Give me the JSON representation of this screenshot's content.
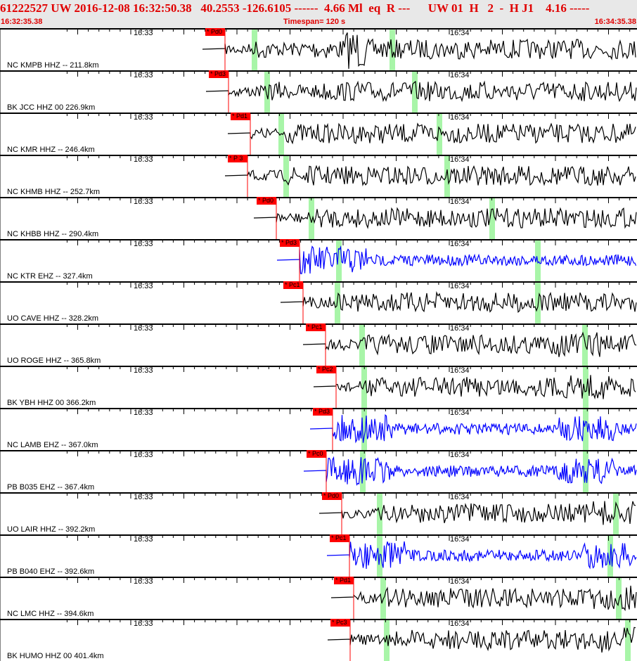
{
  "header": {
    "title": "61222527 UW 2016-12-08 16:32:50.38   40.2553 -126.6105 ------  4.66 Ml  eq  R ---      UW 01  H   2  -  H J1    4.16 -----",
    "start_time": "16:32:35.38",
    "timespan": "Timespan= 120 s",
    "end_time": "16:34:35.38"
  },
  "time_labels": [
    "16:33",
    "16:34"
  ],
  "colors": {
    "header_text": "#e00000",
    "pick": "#ff0000",
    "s_marker": "#a8f5a8",
    "trace_hhz": "#000000",
    "trace_ehz": "#0000ff"
  },
  "traces": [
    {
      "label": "NC KMPB HHZ -- 211.8km",
      "pick": "* Pd0",
      "channel": "HHZ"
    },
    {
      "label": "BK JCC HHZ 00 226.9km",
      "pick": "* Pd3",
      "channel": "HHZ"
    },
    {
      "label": "NC KMR HHZ -- 246.4km",
      "pick": "* Pd1",
      "channel": "HHZ"
    },
    {
      "label": "NC KHMB HHZ -- 252.7km",
      "pick": "* P 3",
      "channel": "HHZ"
    },
    {
      "label": "NC KHBB HHZ -- 290.4km",
      "pick": "* Pd0",
      "channel": "HHZ"
    },
    {
      "label": "NC KTR EHZ -- 327.4km",
      "pick": "* Pd3",
      "channel": "EHZ"
    },
    {
      "label": "UO CAVE HHZ -- 328.2km",
      "pick": "* Pc1",
      "channel": "HHZ"
    },
    {
      "label": "UO ROGE HHZ -- 365.8km",
      "pick": "* Pc1",
      "channel": "HHZ"
    },
    {
      "label": "BK YBH HHZ 00 366.2km",
      "pick": "* Pc2",
      "channel": "HHZ"
    },
    {
      "label": "NC LAMB EHZ -- 367.0km",
      "pick": "* Pd3",
      "channel": "EHZ"
    },
    {
      "label": "PB B035 EHZ -- 367.4km",
      "pick": "* Pc0",
      "channel": "EHZ"
    },
    {
      "label": "UO LAIR HHZ -- 392.2km",
      "pick": "* Pd0",
      "channel": "HHZ"
    },
    {
      "label": "PB B040 EHZ -- 392.6km",
      "pick": "* Pc1",
      "channel": "EHZ"
    },
    {
      "label": "NC LMC HHZ -- 394.6km",
      "pick": "* Pd1",
      "channel": "HHZ"
    },
    {
      "label": "BK HUMO HHZ 00 401.4km",
      "pick": "* Pc3",
      "channel": "HHZ"
    }
  ]
}
